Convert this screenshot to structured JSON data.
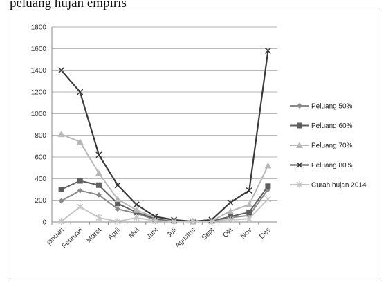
{
  "header": {
    "caption_fragment": "peluang hujan empiris"
  },
  "chart_data": {
    "type": "line",
    "categories": [
      "januari",
      "Februari",
      "Maret",
      "April",
      "Mei",
      "Juni",
      "Juli",
      "Agustus",
      "Sept",
      "Okt",
      "Nov",
      "Des"
    ],
    "ylim": [
      0,
      1800
    ],
    "yticks": [
      0,
      200,
      400,
      600,
      800,
      1000,
      1200,
      1400,
      1600,
      1800
    ],
    "grid": true,
    "legend": "right",
    "series": [
      {
        "name": "Peluang 50%",
        "color": "#8a8a8a",
        "marker": "diamond",
        "values": [
          195,
          290,
          250,
          120,
          80,
          20,
          10,
          5,
          10,
          40,
          60,
          300
        ]
      },
      {
        "name": "Peluang 60%",
        "color": "#5e5e5e",
        "marker": "square",
        "values": [
          300,
          380,
          340,
          170,
          90,
          30,
          10,
          5,
          10,
          50,
          90,
          330
        ]
      },
      {
        "name": "Peluang 70%",
        "color": "#b8b8b8",
        "marker": "triangle",
        "values": [
          810,
          740,
          450,
          210,
          110,
          40,
          15,
          5,
          10,
          100,
          160,
          520
        ]
      },
      {
        "name": "Peluang 80%",
        "color": "#3a3a3a",
        "marker": "x",
        "values": [
          1400,
          1200,
          620,
          340,
          160,
          50,
          20,
          5,
          20,
          180,
          290,
          1580
        ]
      },
      {
        "name": "Curah hujan 2014",
        "color": "#c6c6c6",
        "marker": "star",
        "values": [
          5,
          140,
          40,
          5,
          40,
          10,
          5,
          5,
          5,
          20,
          30,
          210
        ]
      }
    ]
  }
}
